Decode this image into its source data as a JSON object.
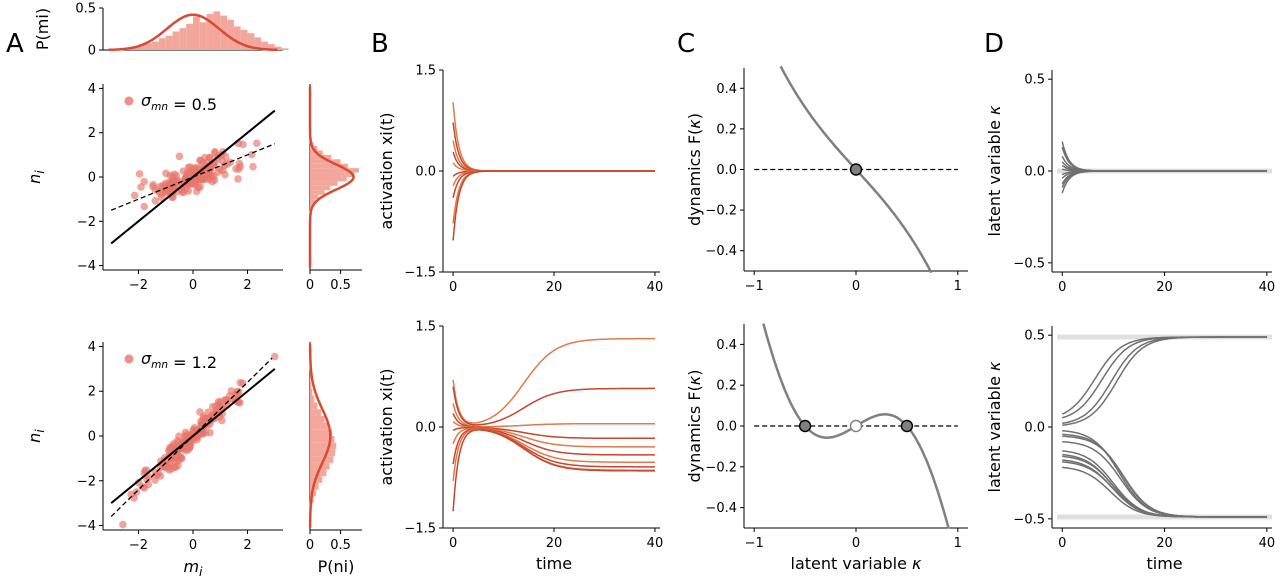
{
  "panel_letters": [
    "A",
    "B",
    "C",
    "D"
  ],
  "colors": {
    "scatter": "#e8756a",
    "density_line": "#d94a32",
    "hist_bar": "#f3a79c",
    "trajectory_red": "#c8452e",
    "trajectory_orange": "#e07a4a",
    "dynamics_curve": "#808080",
    "latent_traj": "#707070",
    "fixed_point_band": "#e0e0e0",
    "fixed_point_stable": "#808080",
    "fixed_point_unstable": "#ffffff"
  },
  "chart_data": [
    {
      "id": "A_top_hist",
      "type": "bar",
      "ylabel": "P(m_i)",
      "ylim": [
        0,
        0.5
      ],
      "yticks": [
        "0",
        "0.5"
      ],
      "histogram": {
        "bin_start": -3.0,
        "bin_width": 0.25,
        "heights": [
          0.01,
          0.01,
          0.02,
          0.03,
          0.06,
          0.08,
          0.1,
          0.14,
          0.17,
          0.22,
          0.26,
          0.31,
          0.4,
          0.33,
          0.43,
          0.46,
          0.41,
          0.36,
          0.28,
          0.24,
          0.2,
          0.15,
          0.1,
          0.07,
          0.04,
          0.02
        ]
      },
      "density_sd": 0.95
    },
    {
      "id": "A_top_scatter",
      "type": "scatter",
      "xlabel": "",
      "ylabel": "n_i",
      "xlim": [
        -3.3,
        3.3
      ],
      "ylim": [
        -4.2,
        4.2
      ],
      "xticks": [
        "−2",
        "0",
        "2"
      ],
      "yticks": [
        "−4",
        "−2",
        "0",
        "2",
        "4"
      ],
      "legend": "σ_mn = 0.5",
      "legend_position": "top-left",
      "sigma_mn": 0.5,
      "n_points": 180,
      "identity_line": true,
      "regression_slope": 0.5
    },
    {
      "id": "A_top_side_hist",
      "type": "bar",
      "xlabel": "",
      "xlim": [
        0,
        0.85
      ],
      "xticks": [
        "0",
        "0.5"
      ],
      "histogram": {
        "bin_start": -2.0,
        "bin_width": 0.2,
        "heights": [
          0.01,
          0.02,
          0.03,
          0.05,
          0.09,
          0.14,
          0.24,
          0.33,
          0.45,
          0.6,
          0.72,
          0.8,
          0.62,
          0.5,
          0.35,
          0.21,
          0.12,
          0.06,
          0.03,
          0.01
        ]
      },
      "density_sd": 0.56
    },
    {
      "id": "A_bottom_scatter",
      "type": "scatter",
      "xlabel": "m_i",
      "ylabel": "n_i",
      "xlim": [
        -3.3,
        3.3
      ],
      "ylim": [
        -4.2,
        4.2
      ],
      "xticks": [
        "−2",
        "0",
        "2"
      ],
      "yticks": [
        "−4",
        "−2",
        "0",
        "2",
        "4"
      ],
      "legend": "σ_mn = 1.2",
      "legend_position": "top-left",
      "sigma_mn": 1.2,
      "n_points": 180,
      "identity_line": true,
      "regression_slope": 1.2
    },
    {
      "id": "A_bottom_side_hist",
      "type": "bar",
      "xlabel": "P(n_i)",
      "xlim": [
        0,
        0.85
      ],
      "xticks": [
        "0",
        "0.5"
      ],
      "histogram": {
        "bin_start": -3.6,
        "bin_width": 0.3,
        "heights": [
          0.02,
          0.03,
          0.06,
          0.1,
          0.14,
          0.2,
          0.27,
          0.32,
          0.38,
          0.41,
          0.43,
          0.4,
          0.36,
          0.3,
          0.24,
          0.18,
          0.12,
          0.07,
          0.04,
          0.02,
          0.01,
          0.01
        ]
      },
      "density_sd": 1.2
    },
    {
      "id": "B_top",
      "type": "line",
      "ylabel": "activation x_i(t)",
      "xlabel": "",
      "xlim": [
        -2,
        41
      ],
      "ylim": [
        -1.5,
        1.5
      ],
      "xticks": [
        "0",
        "20",
        "40"
      ],
      "yticks": [
        "−1.5",
        "0.0",
        "1.5"
      ],
      "series": [
        {
          "x0": 1.02,
          "final": 0.0,
          "tau": 1.0
        },
        {
          "x0": 0.72,
          "final": 0.0,
          "tau": 1.0
        },
        {
          "x0": 0.45,
          "final": 0.0,
          "tau": 1.0
        },
        {
          "x0": 0.28,
          "final": 0.0,
          "tau": 1.0
        },
        {
          "x0": 0.12,
          "final": 0.0,
          "tau": 1.0
        },
        {
          "x0": -0.08,
          "final": 0.0,
          "tau": 1.0
        },
        {
          "x0": -0.22,
          "final": 0.0,
          "tau": 1.0
        },
        {
          "x0": -0.4,
          "final": 0.0,
          "tau": 1.0
        },
        {
          "x0": -0.78,
          "final": 0.0,
          "tau": 1.0
        },
        {
          "x0": -1.03,
          "final": 0.0,
          "tau": 1.0
        }
      ]
    },
    {
      "id": "B_bottom",
      "type": "line",
      "ylabel": "activation x_i(t)",
      "xlabel": "time",
      "xlim": [
        -2,
        41
      ],
      "ylim": [
        -1.5,
        1.5
      ],
      "xticks": [
        "0",
        "20",
        "40"
      ],
      "yticks": [
        "−1.5",
        "0.0",
        "1.5"
      ],
      "series": [
        {
          "x0": 0.7,
          "final": 1.33,
          "tau": 1.0
        },
        {
          "x0": 0.6,
          "final": 0.58,
          "tau": 1.0
        },
        {
          "x0": 0.35,
          "final": 0.05,
          "tau": 1.0
        },
        {
          "x0": 0.2,
          "final": -0.17,
          "tau": 1.0
        },
        {
          "x0": 0.08,
          "final": -0.3,
          "tau": 1.0
        },
        {
          "x0": -0.05,
          "final": -0.42,
          "tau": 1.0
        },
        {
          "x0": -0.25,
          "final": -0.53,
          "tau": 1.0
        },
        {
          "x0": -0.55,
          "final": -0.6,
          "tau": 1.0
        },
        {
          "x0": -0.8,
          "final": -0.65,
          "tau": 1.0
        },
        {
          "x0": -1.25,
          "final": -0.66,
          "tau": 1.0
        }
      ]
    },
    {
      "id": "C_top",
      "type": "line",
      "ylabel": "dynamics F(κ)",
      "xlabel": "",
      "xlim": [
        -1.1,
        1.1
      ],
      "ylim": [
        -0.5,
        0.5
      ],
      "xticks": [
        "−1",
        "0",
        "1"
      ],
      "yticks": [
        "−0.4",
        "−0.2",
        "0.0",
        "0.2",
        "0.4"
      ],
      "curve": "F(k) = -0.5k - 0.25k^3",
      "fixed_points": [
        {
          "kappa": 0.0,
          "stable": true
        }
      ]
    },
    {
      "id": "C_bottom",
      "type": "line",
      "ylabel": "dynamics F(κ)",
      "xlabel": "latent variable κ",
      "xlim": [
        -1.1,
        1.1
      ],
      "ylim": [
        -0.5,
        0.5
      ],
      "xticks": [
        "−1",
        "0",
        "1"
      ],
      "yticks": [
        "−0.4",
        "−0.2",
        "0.0",
        "0.2",
        "0.4"
      ],
      "curve": "F(k) = 0.16k - 0.64k^3 + 0.08(1 - k^2)^2 / ... (bistable)",
      "fixed_points": [
        {
          "kappa": -0.5,
          "stable": true
        },
        {
          "kappa": 0.0,
          "stable": false
        },
        {
          "kappa": 0.5,
          "stable": true
        }
      ]
    },
    {
      "id": "D_top",
      "type": "line",
      "ylabel": "latent variable κ",
      "xlabel": "",
      "xlim": [
        -2,
        41
      ],
      "ylim": [
        -0.55,
        0.55
      ],
      "xticks": [
        "0",
        "20",
        "40"
      ],
      "yticks": [
        "−0.5",
        "0.0",
        "0.5"
      ],
      "fixed_point_bands": [
        0.0
      ],
      "series_initial": [
        0.16,
        0.13,
        0.08,
        0.05,
        0.03,
        0.01,
        -0.02,
        -0.04,
        -0.07,
        -0.09,
        -0.12
      ]
    },
    {
      "id": "D_bottom",
      "type": "line",
      "ylabel": "latent variable κ",
      "xlabel": "time",
      "xlim": [
        -2,
        41
      ],
      "ylim": [
        -0.55,
        0.55
      ],
      "xticks": [
        "0",
        "20",
        "40"
      ],
      "yticks": [
        "−0.5",
        "0.0",
        "0.5"
      ],
      "fixed_point_bands": [
        0.49,
        -0.49
      ],
      "series_initial": [
        0.07,
        0.05,
        0.02,
        0.01,
        -0.02,
        -0.04,
        -0.05,
        -0.08,
        -0.13,
        -0.15,
        -0.16,
        -0.18,
        -0.19,
        -0.22
      ]
    }
  ]
}
